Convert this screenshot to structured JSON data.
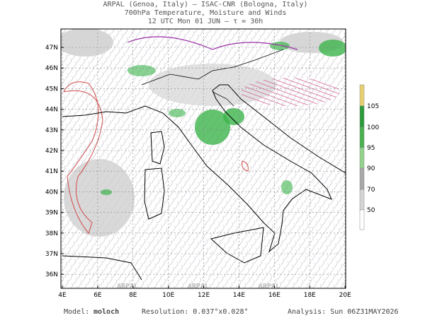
{
  "title": {
    "line1": "ARPAL (Genoa, Italy)  –  ISAC-CNR (Bologna, Italy)",
    "line2": "700hPa Temperature, Moisture and Winds",
    "line3": "12 UTC Mon 01 JUN  –  τ = 30h"
  },
  "map": {
    "lat_labels": [
      "47N",
      "46N",
      "45N",
      "44N",
      "43N",
      "42N",
      "41N",
      "40N",
      "39N",
      "38N",
      "37N",
      "36N"
    ],
    "lon_labels": [
      "4E",
      "6E",
      "8E",
      "10E",
      "12E",
      "14E",
      "16E",
      "18E",
      "20E"
    ],
    "watermark": "ARPAL"
  },
  "colorbar": {
    "labels": [
      "105",
      "100",
      "95",
      "90",
      "70",
      "50"
    ]
  },
  "footer": {
    "model_label": "Model:",
    "model": "moloch",
    "resolution": "Resolution: 0.037°x0.028°",
    "analysis": "Analysis: Sun 06Z31MAY2026"
  }
}
